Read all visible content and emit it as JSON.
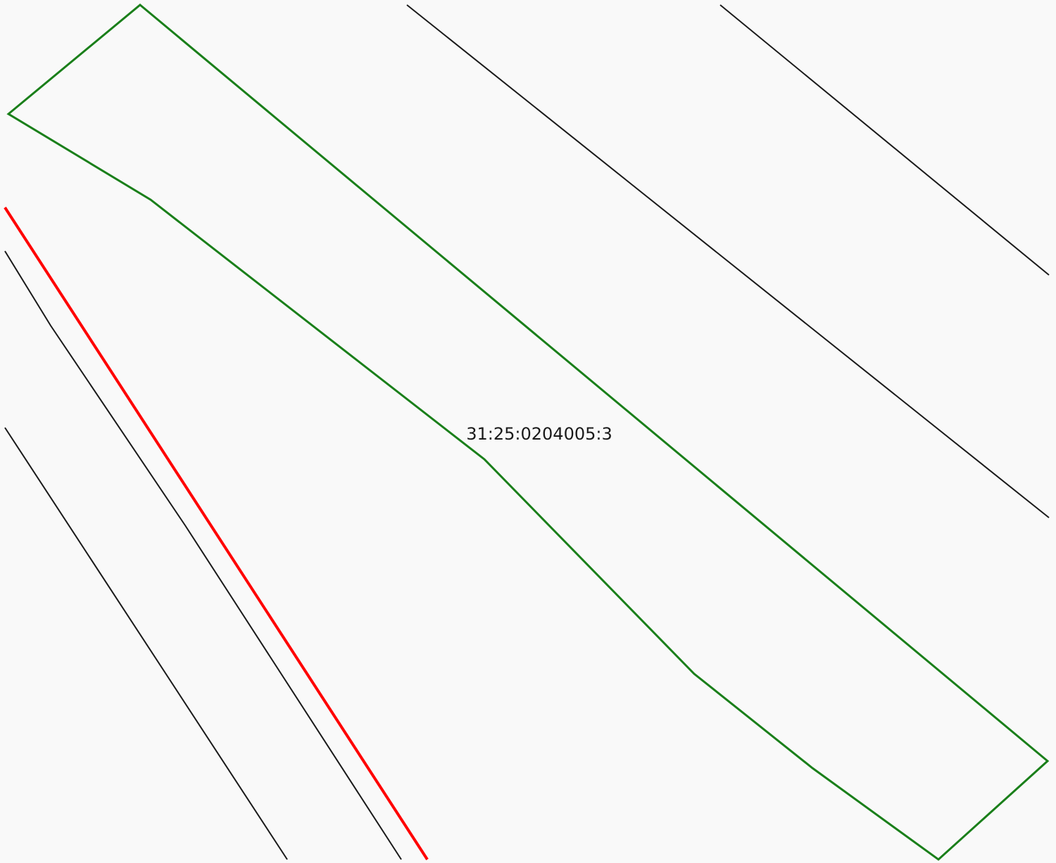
{
  "colors": {
    "background": "#f9f9f9",
    "parcel_outline": "#1a7f1a",
    "highlight_line": "#ff0000",
    "boundary_line": "#1a1a1a"
  },
  "parcel": {
    "cadastral_number": "31:25:0204005:3"
  }
}
